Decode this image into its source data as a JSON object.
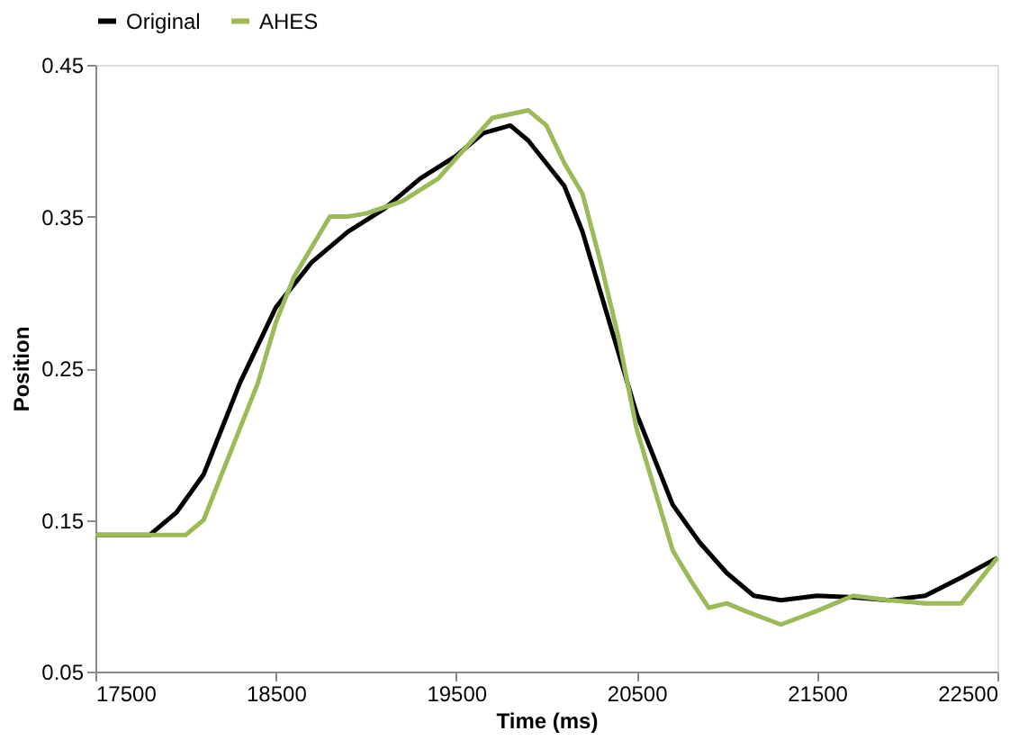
{
  "chart_data": {
    "type": "line",
    "xlabel": "Time (ms)",
    "ylabel": "Position",
    "xlim": [
      17500,
      22500
    ],
    "xticks": [
      17500,
      18500,
      19500,
      20500,
      21500,
      22500
    ],
    "ylim": [
      0.05,
      0.45
    ],
    "yticks": [
      0.05,
      0.15,
      0.25,
      0.35,
      0.45
    ],
    "grid": false,
    "legend": "top",
    "marker": "none",
    "line_style": "solid",
    "series": [
      {
        "name": "Original",
        "color": "#000000",
        "x": [
          17500,
          17800,
          17950,
          18100,
          18300,
          18500,
          18700,
          18900,
          19100,
          19300,
          19500,
          19650,
          19800,
          19900,
          20000,
          20100,
          20200,
          20300,
          20400,
          20500,
          20600,
          20700,
          20850,
          21000,
          21150,
          21300,
          21500,
          21700,
          21900,
          22100,
          22300,
          22500
        ],
        "values": [
          0.14,
          0.14,
          0.155,
          0.18,
          0.24,
          0.29,
          0.32,
          0.34,
          0.355,
          0.375,
          0.39,
          0.405,
          0.41,
          0.4,
          0.385,
          0.37,
          0.34,
          0.3,
          0.26,
          0.22,
          0.19,
          0.16,
          0.135,
          0.115,
          0.1,
          0.097,
          0.1,
          0.099,
          0.097,
          0.1,
          0.112,
          0.125
        ]
      },
      {
        "name": "AHES",
        "color": "#9bbb59",
        "x": [
          17500,
          18000,
          18100,
          18200,
          18300,
          18400,
          18500,
          18600,
          18700,
          18800,
          18900,
          19000,
          19200,
          19400,
          19550,
          19700,
          19900,
          20000,
          20100,
          20200,
          20300,
          20400,
          20500,
          20600,
          20700,
          20800,
          20900,
          21000,
          21100,
          21300,
          21500,
          21700,
          21900,
          22100,
          22300,
          22500
        ],
        "values": [
          0.14,
          0.14,
          0.15,
          0.18,
          0.21,
          0.24,
          0.28,
          0.31,
          0.33,
          0.35,
          0.35,
          0.352,
          0.36,
          0.375,
          0.395,
          0.415,
          0.42,
          0.41,
          0.385,
          0.365,
          0.32,
          0.27,
          0.21,
          0.17,
          0.13,
          0.11,
          0.092,
          0.095,
          0.09,
          0.081,
          0.09,
          0.1,
          0.097,
          0.095,
          0.095,
          0.125
        ]
      }
    ]
  }
}
